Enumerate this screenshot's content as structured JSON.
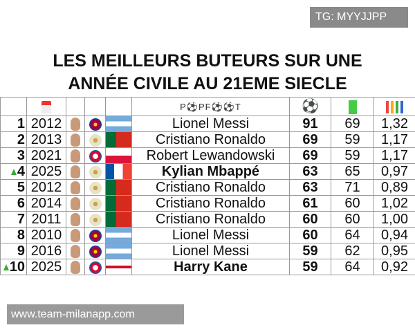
{
  "watermarks": {
    "top_right": "TG: MYYJJPP",
    "bottom_left": "www.team-milanapp.com"
  },
  "title": {
    "line1": "LES MEILLEURS BUTEURS SUR UNE",
    "line2": "ANNÉE CIVILE AU 21EME SIECLE"
  },
  "header": {
    "year_icon": "calendar-icon",
    "brand": "P⚽PF⚽⚽T",
    "goals_icon": "soccer-ball-icon",
    "matches_icon": "pitch-icon",
    "ratio_icon": "bar-chart-icon"
  },
  "colors": {
    "barca": "#a50044",
    "real": "#e8e2c8",
    "bayern": "#dc052d",
    "argentina": "#75aadb",
    "portugal": "#d52b1e",
    "portugal_green": "#046a38",
    "france_blue": "#0055a4"
  },
  "rows": [
    {
      "rank": "1",
      "year": "2012",
      "club": "barcelona",
      "flag": "argentina",
      "name": "Lionel Messi",
      "goals": "91",
      "matches": "69",
      "ratio": "1,32"
    },
    {
      "rank": "2",
      "year": "2013",
      "club": "real-madrid",
      "flag": "portugal",
      "name": "Cristiano Ronaldo",
      "goals": "69",
      "matches": "59",
      "ratio": "1,17"
    },
    {
      "rank": "3",
      "year": "2021",
      "club": "bayern",
      "flag": "poland",
      "name": "Robert Lewandowski",
      "goals": "69",
      "matches": "59",
      "ratio": "1,17"
    },
    {
      "rank": "4",
      "year": "2025",
      "club": "real-madrid",
      "flag": "france",
      "name": "Kylian Mbappé",
      "goals": "63",
      "matches": "65",
      "ratio": "0,97",
      "bold": true,
      "up": true
    },
    {
      "rank": "5",
      "year": "2012",
      "club": "real-madrid",
      "flag": "portugal",
      "name": "Cristiano Ronaldo",
      "goals": "63",
      "matches": "71",
      "ratio": "0,89"
    },
    {
      "rank": "6",
      "year": "2014",
      "club": "real-madrid",
      "flag": "portugal",
      "name": "Cristiano Ronaldo",
      "goals": "61",
      "matches": "60",
      "ratio": "1,02"
    },
    {
      "rank": "7",
      "year": "2011",
      "club": "real-madrid",
      "flag": "portugal",
      "name": "Cristiano Ronaldo",
      "goals": "60",
      "matches": "60",
      "ratio": "1,00"
    },
    {
      "rank": "8",
      "year": "2010",
      "club": "barcelona",
      "flag": "argentina",
      "name": "Lionel Messi",
      "goals": "60",
      "matches": "64",
      "ratio": "0,94"
    },
    {
      "rank": "9",
      "year": "2016",
      "club": "barcelona",
      "flag": "argentina",
      "name": "Lionel Messi",
      "goals": "59",
      "matches": "62",
      "ratio": "0,95"
    },
    {
      "rank": "10",
      "year": "2025",
      "club": "bayern",
      "flag": "england",
      "name": "Harry Kane",
      "goals": "59",
      "matches": "64",
      "ratio": "0,92",
      "bold": true,
      "up": true
    }
  ]
}
